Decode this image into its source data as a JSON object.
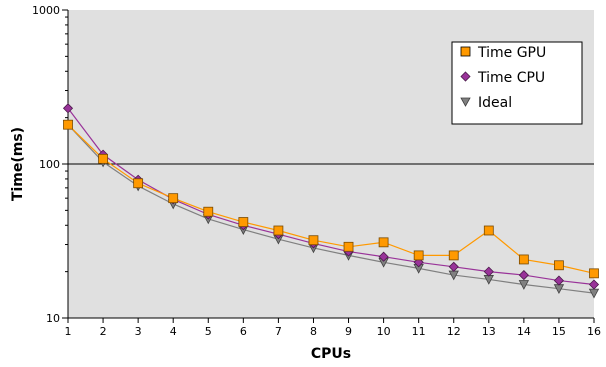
{
  "chart_data": {
    "type": "line",
    "title": "",
    "xlabel": "CPUs",
    "ylabel": "Time(ms)",
    "y_scale": "log",
    "ylim": [
      10,
      1000
    ],
    "xlim": [
      1,
      16
    ],
    "y_ticks": [
      10,
      100,
      1000
    ],
    "y_tick_labels": [
      "10",
      "100",
      "1000"
    ],
    "x_ticks": [
      1,
      2,
      3,
      4,
      5,
      6,
      7,
      8,
      9,
      10,
      11,
      12,
      13,
      14,
      15,
      16
    ],
    "x_tick_labels": [
      "1",
      "2",
      "3",
      "4",
      "5",
      "6",
      "7",
      "8",
      "9",
      "10",
      "11",
      "12",
      "13",
      "14",
      "15",
      "16"
    ],
    "grid": "horizontal at 100",
    "legend_position": "top-right",
    "background": "#e0e0e0",
    "series": [
      {
        "name": "Time GPU",
        "marker": "square",
        "color": "#ff9900",
        "line_color": "#ff9900",
        "x": [
          1,
          2,
          3,
          4,
          5,
          6,
          7,
          8,
          9,
          10,
          11,
          12,
          13,
          14,
          15,
          16
        ],
        "values": [
          180,
          108,
          75,
          60,
          49,
          42,
          37,
          32,
          29,
          31,
          25.5,
          25.5,
          37,
          24,
          22,
          19.5
        ]
      },
      {
        "name": "Time CPU",
        "marker": "diamond",
        "color": "#993399",
        "line_color": "#993399",
        "x": [
          1,
          2,
          3,
          4,
          5,
          6,
          7,
          8,
          9,
          10,
          11,
          12,
          13,
          14,
          15,
          16
        ],
        "values": [
          230,
          115,
          79,
          59,
          47,
          40,
          35,
          30.5,
          27,
          25,
          23,
          21.5,
          20,
          19,
          17.5,
          16.5
        ]
      },
      {
        "name": "Ideal",
        "marker": "triangle-down",
        "color": "#808080",
        "line_color": "#808080",
        "x": [
          1,
          2,
          3,
          4,
          5,
          6,
          7,
          8,
          9,
          10,
          11,
          12,
          13,
          14,
          15,
          16
        ],
        "values": [
          180,
          103,
          72,
          55,
          44,
          37.5,
          32.5,
          28.5,
          25.5,
          23,
          21,
          19,
          17.8,
          16.5,
          15.5,
          14.5
        ]
      }
    ]
  }
}
